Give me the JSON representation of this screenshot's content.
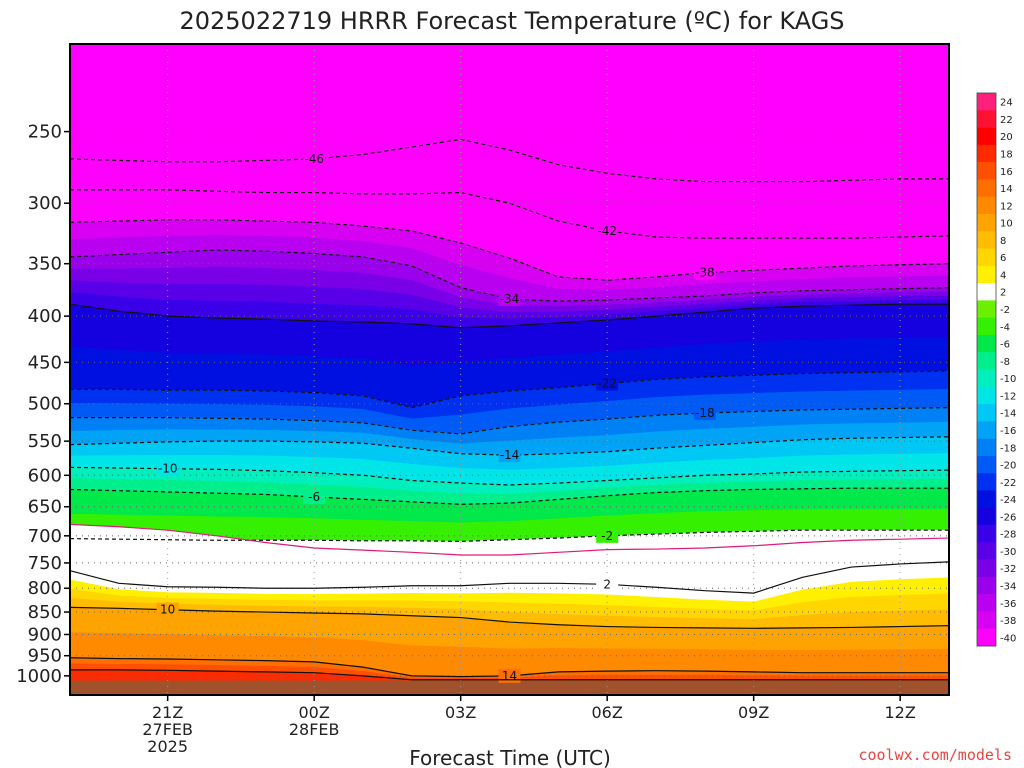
{
  "title": "2025022719 HRRR Forecast Temperature (ºC) for KAGS",
  "credit": "coolwx.com/models",
  "chart_data": {
    "type": "heatmap",
    "title": "2025022719 HRRR Forecast Temperature (ºC) for KAGS",
    "xlabel": "Forecast Time (UTC)",
    "ylabel": "",
    "y_scale": "log (pressure, hPa)",
    "ylim": [
      1050,
      200
    ],
    "y_ticks": [
      250,
      300,
      350,
      400,
      450,
      500,
      550,
      600,
      650,
      700,
      750,
      800,
      850,
      900,
      950,
      1000
    ],
    "x": [
      "19Z",
      "20Z",
      "21Z",
      "22Z",
      "23Z",
      "00Z",
      "01Z",
      "02Z",
      "03Z",
      "04Z",
      "05Z",
      "06Z",
      "07Z",
      "08Z",
      "09Z",
      "10Z",
      "11Z",
      "12Z",
      "13Z"
    ],
    "x_tick_labels": [
      {
        "hour": "21Z",
        "lines": [
          "21Z",
          "27FEB",
          "2025"
        ]
      },
      {
        "hour": "00Z",
        "lines": [
          "00Z",
          "28FEB"
        ]
      },
      {
        "hour": "03Z",
        "lines": [
          "03Z"
        ]
      },
      {
        "hour": "06Z",
        "lines": [
          "06Z"
        ]
      },
      {
        "hour": "09Z",
        "lines": [
          "09Z"
        ]
      },
      {
        "hour": "12Z",
        "lines": [
          "12Z"
        ]
      }
    ],
    "grid": true,
    "ground_color": "#a0522d",
    "isotherms": [
      {
        "value": -46,
        "label": "-46",
        "style": "dashed",
        "pressure": [
          268,
          269,
          270,
          270,
          269,
          268,
          265,
          260,
          255,
          262,
          272,
          278,
          282,
          284,
          284,
          284,
          283,
          282,
          282
        ]
      },
      {
        "value": -42,
        "label": "-42",
        "style": "dashed",
        "pressure": [
          290,
          290,
          290,
          291,
          292,
          292,
          293,
          293,
          292,
          300,
          314,
          322,
          327,
          328,
          328,
          328,
          328,
          327,
          326
        ]
      },
      {
        "value": -38,
        "label": "-38",
        "style": "dashed",
        "pressure": [
          315,
          314,
          313,
          313,
          314,
          315,
          318,
          322,
          332,
          345,
          362,
          365,
          362,
          358,
          356,
          354,
          352,
          351,
          350
        ]
      },
      {
        "value": -34,
        "label": "-34",
        "style": "dashed",
        "pressure": [
          344,
          342,
          340,
          338,
          339,
          341,
          344,
          352,
          372,
          383,
          385,
          384,
          382,
          380,
          377,
          375,
          374,
          373,
          372
        ]
      },
      {
        "value": -26,
        "label": "",
        "style": "solid",
        "pressure": [
          388,
          395,
          400,
          402,
          403,
          405,
          406,
          408,
          412,
          410,
          407,
          404,
          400,
          396,
          392,
          390,
          389,
          388,
          388
        ]
      },
      {
        "value": -22,
        "label": "-22",
        "style": "dashed",
        "pressure": [
          482,
          482,
          483,
          483,
          484,
          486,
          490,
          505,
          490,
          484,
          480,
          475,
          470,
          467,
          465,
          463,
          462,
          461,
          460
        ]
      },
      {
        "value": -18,
        "label": "-18",
        "style": "dashed",
        "pressure": [
          518,
          518,
          518,
          519,
          520,
          522,
          525,
          535,
          540,
          530,
          524,
          520,
          515,
          512,
          510,
          508,
          507,
          506,
          505
        ]
      },
      {
        "value": -14,
        "label": "-14",
        "style": "dashed",
        "pressure": [
          555,
          553,
          551,
          550,
          550,
          551,
          553,
          560,
          568,
          570,
          568,
          565,
          560,
          556,
          552,
          548,
          546,
          545,
          544
        ]
      },
      {
        "value": -10,
        "label": "-10",
        "style": "dashed",
        "pressure": [
          588,
          589,
          590,
          591,
          593,
          596,
          600,
          608,
          612,
          615,
          612,
          608,
          604,
          600,
          598,
          595,
          594,
          593,
          592
        ]
      },
      {
        "value": -6,
        "label": "-6",
        "style": "dashed",
        "pressure": [
          622,
          624,
          626,
          628,
          630,
          634,
          638,
          642,
          646,
          644,
          638,
          632,
          627,
          624,
          622,
          621,
          620,
          620,
          620
        ]
      },
      {
        "value": -2,
        "label": "-2",
        "style": "dashed",
        "pressure": [
          705,
          706,
          707,
          708,
          708,
          708,
          709,
          709,
          710,
          707,
          704,
          700,
          697,
          694,
          692,
          690,
          690,
          690,
          690
        ]
      },
      {
        "value": 0,
        "label": "",
        "style": "solid-magenta",
        "pressure": [
          680,
          684,
          690,
          700,
          712,
          722,
          726,
          730,
          735,
          735,
          730,
          725,
          724,
          722,
          718,
          712,
          708,
          706,
          704
        ]
      },
      {
        "value": 2,
        "label": "2",
        "style": "solid",
        "pressure": [
          765,
          790,
          797,
          798,
          800,
          800,
          798,
          795,
          795,
          790,
          790,
          792,
          798,
          805,
          810,
          778,
          758,
          752,
          748
        ]
      },
      {
        "value": 10,
        "label": "10",
        "style": "solid",
        "pressure": [
          840,
          842,
          845,
          848,
          850,
          852,
          854,
          858,
          862,
          872,
          878,
          882,
          884,
          885,
          886,
          885,
          884,
          882,
          880
        ]
      },
      {
        "value": 14,
        "label": "14",
        "style": "solid",
        "pressure": [
          955,
          957,
          958,
          960,
          962,
          965,
          978,
          1000,
          1002,
          1000,
          990,
          988,
          987,
          988,
          990,
          992,
          992,
          992,
          992
        ]
      },
      {
        "value": 18,
        "label": "",
        "style": "solid",
        "pressure": [
          985,
          985,
          986,
          988,
          990,
          992,
          1000,
          1010,
          1010,
          1010,
          1010,
          1010,
          1010,
          1010,
          1010,
          1010,
          1010,
          1010,
          1010
        ]
      }
    ],
    "colorbar": {
      "labels": [
        24,
        22,
        20,
        18,
        16,
        14,
        12,
        10,
        8,
        6,
        4,
        2,
        -2,
        -4,
        -6,
        -8,
        -10,
        -12,
        -14,
        -16,
        -18,
        -20,
        -22,
        -24,
        -26,
        -28,
        -30,
        -32,
        -34,
        -36,
        -38,
        -40
      ],
      "colors": [
        "#ff1f7d",
        "#ff1133",
        "#ff0000",
        "#ff2a00",
        "#ff4f00",
        "#ff6e00",
        "#ff8a00",
        "#ffa300",
        "#ffbc00",
        "#ffd600",
        "#fff000",
        "#ffffff",
        "#6af000",
        "#35f000",
        "#00e84a",
        "#00ef8c",
        "#00efbc",
        "#00e6e8",
        "#00c8f5",
        "#00a3f5",
        "#0080f5",
        "#005af5",
        "#0030f0",
        "#0010e0",
        "#1500e0",
        "#3a00e8",
        "#5a00e8",
        "#7a00e8",
        "#9a00ec",
        "#b900f0",
        "#d800f2",
        "#ff00ff"
      ]
    }
  }
}
